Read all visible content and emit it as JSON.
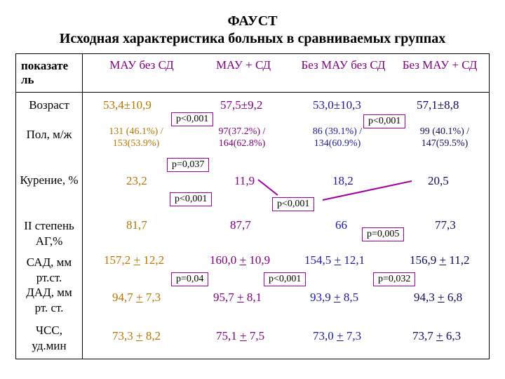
{
  "title": "ФАУСТ",
  "subtitle": "Исходная характеристика больных в сравниваемых группах",
  "header": {
    "param": "показате ль",
    "col1": "МАУ без СД",
    "col2": "МАУ + СД",
    "col3": "Без МАУ без СД",
    "col4": "Без МАУ + СД"
  },
  "rows": {
    "age": {
      "label": "Возраст",
      "v1": "53,4±10,9",
      "v2": "57,5±9,2",
      "v3": "53,0±10,3",
      "v4": "57,1±8,8"
    },
    "sex": {
      "label": "Пол, м/ж",
      "v1a": "131 (46.1%) /",
      "v1b": "153(53.9%)",
      "v2a": "97(37.2%) /",
      "v2b": "164(62.8%)",
      "v3a": "86 (39.1%) /",
      "v3b": "134(60.9%)",
      "v4a": "99 (40.1%) /",
      "v4b": "147(59.5%)"
    },
    "smoking": {
      "label": "Курение, %",
      "v1": "23,2",
      "v2": "11,9",
      "v3": "18,2",
      "v4": "20,5"
    },
    "ag": {
      "label": "II степень АГ,%",
      "v1": "81,7",
      "v2": "87,7",
      "v3": "66",
      "v4": "77,3"
    },
    "sad": {
      "label": "САД, мм рт.ст.",
      "v1a": "157,2 ",
      "v1pm": "+",
      "v1b": " 12,2",
      "v2a": "160,0 ",
      "v2pm": "+",
      "v2b": " 10,9",
      "v3a": "154,5 ",
      "v3pm": "+",
      "v3b": " 12,1",
      "v4a": "156,9 ",
      "v4pm": "+",
      "v4b": " 11,2"
    },
    "dad": {
      "label": "ДАД, мм рт. ст.",
      "v1a": "94,7 ",
      "v1pm": "+",
      "v1b": " 7,3",
      "v2a": "95,7 ",
      "v2pm": "+",
      "v2b": " 8,1",
      "v3a": "93,9 ",
      "v3pm": "+",
      "v3b": " 8,5",
      "v4a": "94,3 ",
      "v4pm": "+",
      "v4b": " 6,8"
    },
    "hr": {
      "label": "ЧСС, уд.мин",
      "v1a": "73,3 ",
      "v1pm": "+",
      "v1b": " 8,2",
      "v2a": "75,1 ",
      "v2pm": "+",
      "v2b": " 7,5",
      "v3a": "73,0 ",
      "v3pm": "+",
      "v3b": " 7,3",
      "v4a": "73,7 ",
      "v4pm": "+",
      "v4b": " 6,3"
    }
  },
  "pvalues": {
    "age_left": "p<0,001",
    "age_right": "p<0,001",
    "sex": "p=0,037",
    "smoke_left": "p<0,001",
    "smoke_right": "p<0,001",
    "ag": "p=0,005",
    "sad_left": "p=0,04",
    "sad_mid": "p<0,001",
    "sad_right": "p=0,032"
  }
}
